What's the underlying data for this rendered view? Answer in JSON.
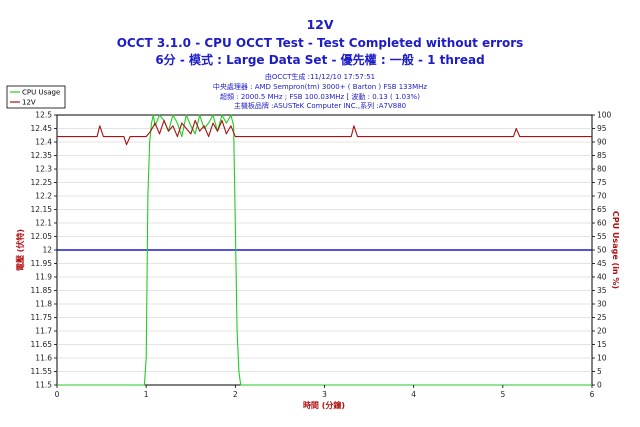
{
  "chart_data": {
    "type": "line",
    "title": "12V",
    "subtitle": "OCCT 3.1.0 - CPU OCCT Test - Test Completed without errors",
    "subtitle2": "6分 - 模式 : Large Data Set - 優先權 : 一般 - 1 thread",
    "info": [
      "由OCCT生成 :11/12/10 17:57:51",
      "中央處理器 : AMD Sempron(tm) 3000+ ( Barton ) FSB 133MHz",
      "超頻 : 2000.5 MHz ; FSB 100.03MHz [ 波動 : 0.13 ( 1.03%)",
      "主機板品牌 :ASUSTeK Computer INC.,系列 :A7V880"
    ],
    "xlabel": "時間 (分鐘)",
    "ylabel": "電壓 (伏特)",
    "y2label": "CPU Usage (in %)",
    "xlim": [
      0,
      6
    ],
    "ylim": [
      11.5,
      12.5
    ],
    "y2lim": [
      0,
      100
    ],
    "xticks": [
      "0",
      "1",
      "2",
      "3",
      "4",
      "5",
      "6"
    ],
    "yticks": [
      "11.5",
      "11.55",
      "11.6",
      "11.65",
      "11.7",
      "11.75",
      "11.8",
      "11.85",
      "11.9",
      "11.95",
      "12",
      "12.05",
      "12.1",
      "12.15",
      "12.2",
      "12.25",
      "12.3",
      "12.35",
      "12.4",
      "12.45",
      "12.5"
    ],
    "y2ticks": [
      "0",
      "5",
      "10",
      "15",
      "20",
      "25",
      "30",
      "35",
      "40",
      "45",
      "50",
      "55",
      "60",
      "65",
      "70",
      "75",
      "80",
      "85",
      "90",
      "95",
      "100"
    ],
    "legend": {
      "placement": "top-left",
      "entries": [
        "CPU Usage",
        "12V"
      ]
    },
    "reference_line": {
      "y": 12.0,
      "color": "#1c1cc8"
    },
    "series": [
      {
        "name": "CPU Usage",
        "axis": "y2",
        "color": "#22cc22",
        "x": [
          0.0,
          0.98,
          1.0,
          1.02,
          1.04,
          1.06,
          1.08,
          1.1,
          1.15,
          1.2,
          1.25,
          1.3,
          1.35,
          1.4,
          1.45,
          1.5,
          1.55,
          1.6,
          1.65,
          1.7,
          1.75,
          1.8,
          1.85,
          1.9,
          1.95,
          1.98,
          2.0,
          2.02,
          2.04,
          2.06,
          6.0
        ],
        "values": [
          0,
          0,
          10,
          70,
          90,
          97,
          100,
          96,
          100,
          98,
          94,
          100,
          97,
          92,
          100,
          96,
          93,
          100,
          95,
          97,
          100,
          94,
          100,
          97,
          100,
          96,
          60,
          20,
          5,
          0,
          0
        ]
      },
      {
        "name": "12V",
        "axis": "y",
        "color": "#aa1111",
        "x": [
          0.0,
          0.45,
          0.48,
          0.52,
          0.55,
          0.75,
          0.78,
          0.82,
          1.0,
          1.05,
          1.1,
          1.15,
          1.2,
          1.25,
          1.3,
          1.35,
          1.4,
          1.45,
          1.5,
          1.55,
          1.6,
          1.65,
          1.7,
          1.75,
          1.8,
          1.85,
          1.9,
          1.95,
          2.0,
          3.3,
          3.33,
          3.37,
          3.4,
          5.12,
          5.15,
          5.19,
          5.22,
          6.0
        ],
        "values": [
          12.42,
          12.42,
          12.46,
          12.42,
          12.42,
          12.42,
          12.39,
          12.42,
          12.42,
          12.44,
          12.47,
          12.43,
          12.48,
          12.44,
          12.46,
          12.42,
          12.47,
          12.45,
          12.43,
          12.48,
          12.44,
          12.46,
          12.42,
          12.47,
          12.44,
          12.48,
          12.43,
          12.46,
          12.42,
          12.42,
          12.46,
          12.42,
          12.42,
          12.42,
          12.45,
          12.42,
          12.42,
          12.42
        ]
      }
    ]
  }
}
